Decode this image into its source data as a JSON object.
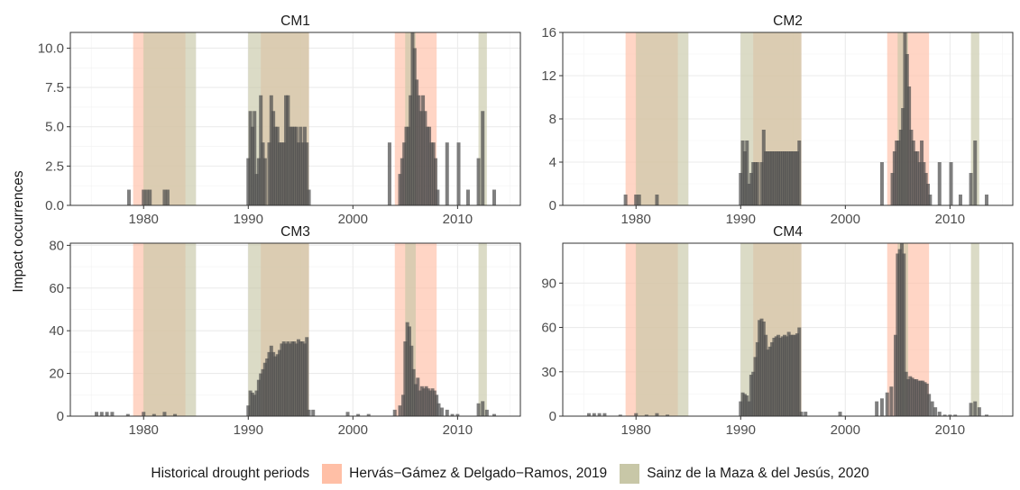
{
  "ylabel": "Impact occurrences",
  "legend": {
    "title": "Historical drought periods",
    "items": [
      {
        "label": "Hervás−Gámez & Delgado−Ramos, 2019",
        "color": "#FFBFA6"
      },
      {
        "label": "Sainz de la Maza & del Jesús, 2020",
        "color": "#C8C7A7"
      }
    ]
  },
  "chart_data": {
    "type": "bar",
    "layout": "facet-2x2",
    "xlim": [
      1973,
      2016
    ],
    "xticks": [
      1980,
      1990,
      2000,
      2010
    ],
    "bar_color": "#4D4D4D",
    "grid": true,
    "legend_position": "bottom",
    "drought_periods": [
      {
        "source": "Hervás−Gámez & Delgado−Ramos, 2019",
        "start": 1979.0,
        "end": 1984.0
      },
      {
        "source": "Hervás−Gámez & Delgado−Ramos, 2019",
        "start": 1991.2,
        "end": 1995.8
      },
      {
        "source": "Hervás−Gámez & Delgado−Ramos, 2019",
        "start": 2004.0,
        "end": 2008.0
      },
      {
        "source": "Sainz de la Maza & del Jesús, 2020",
        "start": 1980.0,
        "end": 1985.0
      },
      {
        "source": "Sainz de la Maza & del Jesús, 2020",
        "start": 1990.0,
        "end": 1995.8
      },
      {
        "source": "Sainz de la Maza & del Jesús, 2020",
        "start": 2005.0,
        "end": 2006.0
      },
      {
        "source": "Sainz de la Maza & del Jesús, 2020",
        "start": 2012.0,
        "end": 2012.8
      }
    ],
    "panels": [
      {
        "title": "CM1",
        "ylim": [
          0,
          11
        ],
        "yticks": [
          0,
          2.5,
          5,
          7.5,
          10
        ],
        "ytick_labels": [
          "0.0",
          "2.5",
          "5.0",
          "7.5",
          "10.0"
        ],
        "series": [
          [
            1978.6,
            1
          ],
          [
            1980.0,
            1
          ],
          [
            1980.3,
            1
          ],
          [
            1980.6,
            1
          ],
          [
            1982.0,
            1
          ],
          [
            1982.3,
            1
          ],
          [
            1990.0,
            3
          ],
          [
            1990.2,
            6
          ],
          [
            1990.4,
            5
          ],
          [
            1990.6,
            6
          ],
          [
            1990.8,
            2
          ],
          [
            1991.0,
            3
          ],
          [
            1991.2,
            7
          ],
          [
            1991.4,
            4
          ],
          [
            1991.6,
            3
          ],
          [
            1992.0,
            4
          ],
          [
            1992.2,
            7
          ],
          [
            1992.4,
            6
          ],
          [
            1992.6,
            5
          ],
          [
            1992.8,
            5
          ],
          [
            1993.0,
            4
          ],
          [
            1993.2,
            4
          ],
          [
            1993.4,
            4
          ],
          [
            1993.6,
            7
          ],
          [
            1993.8,
            7
          ],
          [
            1994.0,
            5
          ],
          [
            1994.2,
            5
          ],
          [
            1994.4,
            5
          ],
          [
            1994.6,
            5
          ],
          [
            1994.8,
            4
          ],
          [
            1995.0,
            5
          ],
          [
            1995.2,
            4
          ],
          [
            1995.4,
            5
          ],
          [
            1995.6,
            4
          ],
          [
            1995.8,
            1
          ],
          [
            2003.5,
            4
          ],
          [
            2004.5,
            2
          ],
          [
            2004.7,
            3
          ],
          [
            2004.9,
            4
          ],
          [
            2005.1,
            5
          ],
          [
            2005.3,
            5
          ],
          [
            2005.5,
            7
          ],
          [
            2005.7,
            11
          ],
          [
            2005.9,
            10
          ],
          [
            2006.1,
            8
          ],
          [
            2006.3,
            7
          ],
          [
            2006.5,
            6
          ],
          [
            2006.7,
            7
          ],
          [
            2006.9,
            6
          ],
          [
            2007.1,
            5
          ],
          [
            2007.3,
            5
          ],
          [
            2007.5,
            4
          ],
          [
            2007.7,
            4
          ],
          [
            2007.9,
            3
          ],
          [
            2008.1,
            1
          ],
          [
            2009.0,
            4
          ],
          [
            2010.1,
            4
          ],
          [
            2011.0,
            1
          ],
          [
            2012.0,
            3
          ],
          [
            2012.4,
            6
          ],
          [
            2013.5,
            1
          ]
        ]
      },
      {
        "title": "CM2",
        "ylim": [
          0,
          16
        ],
        "yticks": [
          0,
          4,
          8,
          12,
          16
        ],
        "ytick_labels": [
          "0",
          "4",
          "8",
          "12",
          "16"
        ],
        "series": [
          [
            1979.0,
            1
          ],
          [
            1980.0,
            1
          ],
          [
            1980.3,
            1
          ],
          [
            1982.0,
            1
          ],
          [
            1990.0,
            3
          ],
          [
            1990.2,
            6
          ],
          [
            1990.4,
            5
          ],
          [
            1990.6,
            6
          ],
          [
            1990.8,
            2
          ],
          [
            1991.0,
            3
          ],
          [
            1991.2,
            4
          ],
          [
            1991.4,
            4
          ],
          [
            1991.6,
            4
          ],
          [
            1992.0,
            4
          ],
          [
            1992.2,
            7
          ],
          [
            1992.4,
            5
          ],
          [
            1992.6,
            5
          ],
          [
            1992.8,
            5
          ],
          [
            1993.0,
            5
          ],
          [
            1993.2,
            5
          ],
          [
            1993.4,
            5
          ],
          [
            1993.6,
            5
          ],
          [
            1993.8,
            5
          ],
          [
            1994.0,
            5
          ],
          [
            1994.2,
            5
          ],
          [
            1994.4,
            5
          ],
          [
            1994.6,
            5
          ],
          [
            1994.8,
            5
          ],
          [
            1995.0,
            5
          ],
          [
            1995.2,
            5
          ],
          [
            1995.4,
            5
          ],
          [
            1995.6,
            6
          ],
          [
            2003.5,
            4
          ],
          [
            2004.5,
            3
          ],
          [
            2004.7,
            5
          ],
          [
            2004.9,
            6
          ],
          [
            2005.1,
            6
          ],
          [
            2005.3,
            7
          ],
          [
            2005.5,
            9
          ],
          [
            2005.7,
            16
          ],
          [
            2005.9,
            14
          ],
          [
            2006.1,
            11
          ],
          [
            2006.3,
            7
          ],
          [
            2006.5,
            6
          ],
          [
            2006.7,
            5
          ],
          [
            2006.9,
            5
          ],
          [
            2007.1,
            4
          ],
          [
            2007.3,
            6
          ],
          [
            2007.5,
            4
          ],
          [
            2007.7,
            3
          ],
          [
            2007.9,
            2
          ],
          [
            2008.1,
            1
          ],
          [
            2009.0,
            4
          ],
          [
            2010.1,
            4
          ],
          [
            2011.0,
            1
          ],
          [
            2012.0,
            3
          ],
          [
            2012.4,
            6
          ],
          [
            2013.5,
            1
          ]
        ]
      },
      {
        "title": "CM3",
        "ylim": [
          0,
          81
        ],
        "yticks": [
          0,
          20,
          40,
          60,
          80
        ],
        "ytick_labels": [
          "0",
          "20",
          "40",
          "60",
          "80"
        ],
        "series": [
          [
            1975.5,
            2
          ],
          [
            1976.0,
            2
          ],
          [
            1976.5,
            2
          ],
          [
            1977.0,
            2
          ],
          [
            1978.5,
            1
          ],
          [
            1980.0,
            2
          ],
          [
            1981.0,
            1
          ],
          [
            1982.0,
            2
          ],
          [
            1983.0,
            1
          ],
          [
            1990.0,
            5
          ],
          [
            1990.2,
            12
          ],
          [
            1990.4,
            11
          ],
          [
            1990.6,
            10
          ],
          [
            1990.8,
            12
          ],
          [
            1991.0,
            17
          ],
          [
            1991.2,
            20
          ],
          [
            1991.4,
            22
          ],
          [
            1991.6,
            25
          ],
          [
            1991.8,
            27
          ],
          [
            1992.0,
            30
          ],
          [
            1992.2,
            33
          ],
          [
            1992.4,
            30
          ],
          [
            1992.6,
            28
          ],
          [
            1992.8,
            29
          ],
          [
            1993.0,
            31
          ],
          [
            1993.2,
            34
          ],
          [
            1993.4,
            35
          ],
          [
            1993.6,
            34
          ],
          [
            1993.8,
            35
          ],
          [
            1994.0,
            34
          ],
          [
            1994.2,
            35
          ],
          [
            1994.4,
            35
          ],
          [
            1994.6,
            34
          ],
          [
            1994.8,
            36
          ],
          [
            1995.0,
            35
          ],
          [
            1995.2,
            35
          ],
          [
            1995.4,
            34
          ],
          [
            1995.6,
            37
          ],
          [
            1995.8,
            3
          ],
          [
            1996.2,
            3
          ],
          [
            1999.5,
            2
          ],
          [
            2000.5,
            1
          ],
          [
            2001.5,
            1
          ],
          [
            2004.0,
            3
          ],
          [
            2004.5,
            5
          ],
          [
            2004.8,
            10
          ],
          [
            2005.0,
            35
          ],
          [
            2005.2,
            44
          ],
          [
            2005.4,
            42
          ],
          [
            2005.6,
            33
          ],
          [
            2005.8,
            22
          ],
          [
            2006.0,
            15
          ],
          [
            2006.2,
            18
          ],
          [
            2006.4,
            12
          ],
          [
            2006.6,
            14
          ],
          [
            2006.8,
            13
          ],
          [
            2007.0,
            14
          ],
          [
            2007.2,
            13
          ],
          [
            2007.4,
            12
          ],
          [
            2007.6,
            13
          ],
          [
            2007.8,
            12
          ],
          [
            2008.0,
            10
          ],
          [
            2008.2,
            6
          ],
          [
            2008.5,
            4
          ],
          [
            2009.0,
            3
          ],
          [
            2009.5,
            1
          ],
          [
            2010.0,
            1
          ],
          [
            2012.0,
            6
          ],
          [
            2012.4,
            7
          ],
          [
            2012.8,
            3
          ],
          [
            2013.5,
            1
          ]
        ]
      },
      {
        "title": "CM4",
        "ylim": [
          0,
          117
        ],
        "yticks": [
          0,
          30,
          60,
          90
        ],
        "ytick_labels": [
          "0",
          "30",
          "60",
          "90"
        ],
        "series": [
          [
            1975.5,
            2
          ],
          [
            1976.0,
            2
          ],
          [
            1976.5,
            2
          ],
          [
            1977.0,
            2
          ],
          [
            1978.5,
            1
          ],
          [
            1980.0,
            2
          ],
          [
            1981.0,
            1
          ],
          [
            1982.0,
            2
          ],
          [
            1983.0,
            1
          ],
          [
            1990.0,
            10
          ],
          [
            1990.2,
            16
          ],
          [
            1990.4,
            15
          ],
          [
            1990.6,
            14
          ],
          [
            1990.8,
            10
          ],
          [
            1991.0,
            28
          ],
          [
            1991.2,
            30
          ],
          [
            1991.4,
            40
          ],
          [
            1991.6,
            50
          ],
          [
            1991.8,
            65
          ],
          [
            1992.0,
            66
          ],
          [
            1992.2,
            64
          ],
          [
            1992.4,
            55
          ],
          [
            1992.6,
            45
          ],
          [
            1992.8,
            47
          ],
          [
            1993.0,
            50
          ],
          [
            1993.2,
            53
          ],
          [
            1993.4,
            54
          ],
          [
            1993.6,
            55
          ],
          [
            1993.8,
            53
          ],
          [
            1994.0,
            54
          ],
          [
            1994.2,
            55
          ],
          [
            1994.4,
            54
          ],
          [
            1994.6,
            57
          ],
          [
            1994.8,
            55
          ],
          [
            1995.0,
            55
          ],
          [
            1995.2,
            55
          ],
          [
            1995.4,
            56
          ],
          [
            1995.6,
            60
          ],
          [
            1995.8,
            3
          ],
          [
            1996.2,
            3
          ],
          [
            1999.5,
            3
          ],
          [
            2003.0,
            10
          ],
          [
            2003.5,
            12
          ],
          [
            2004.0,
            16
          ],
          [
            2004.4,
            20
          ],
          [
            2004.8,
            55
          ],
          [
            2005.0,
            110
          ],
          [
            2005.2,
            113
          ],
          [
            2005.4,
            117
          ],
          [
            2005.6,
            110
          ],
          [
            2005.8,
            30
          ],
          [
            2006.0,
            25
          ],
          [
            2006.2,
            27
          ],
          [
            2006.4,
            26
          ],
          [
            2006.6,
            25
          ],
          [
            2006.8,
            25
          ],
          [
            2007.0,
            24
          ],
          [
            2007.2,
            24
          ],
          [
            2007.4,
            24
          ],
          [
            2007.6,
            23
          ],
          [
            2007.8,
            22
          ],
          [
            2008.0,
            15
          ],
          [
            2008.3,
            10
          ],
          [
            2008.6,
            6
          ],
          [
            2009.0,
            3
          ],
          [
            2009.5,
            1
          ],
          [
            2010.0,
            1
          ],
          [
            2010.5,
            1
          ],
          [
            2012.0,
            9
          ],
          [
            2012.4,
            10
          ],
          [
            2012.8,
            6
          ],
          [
            2013.5,
            1
          ]
        ]
      }
    ]
  }
}
